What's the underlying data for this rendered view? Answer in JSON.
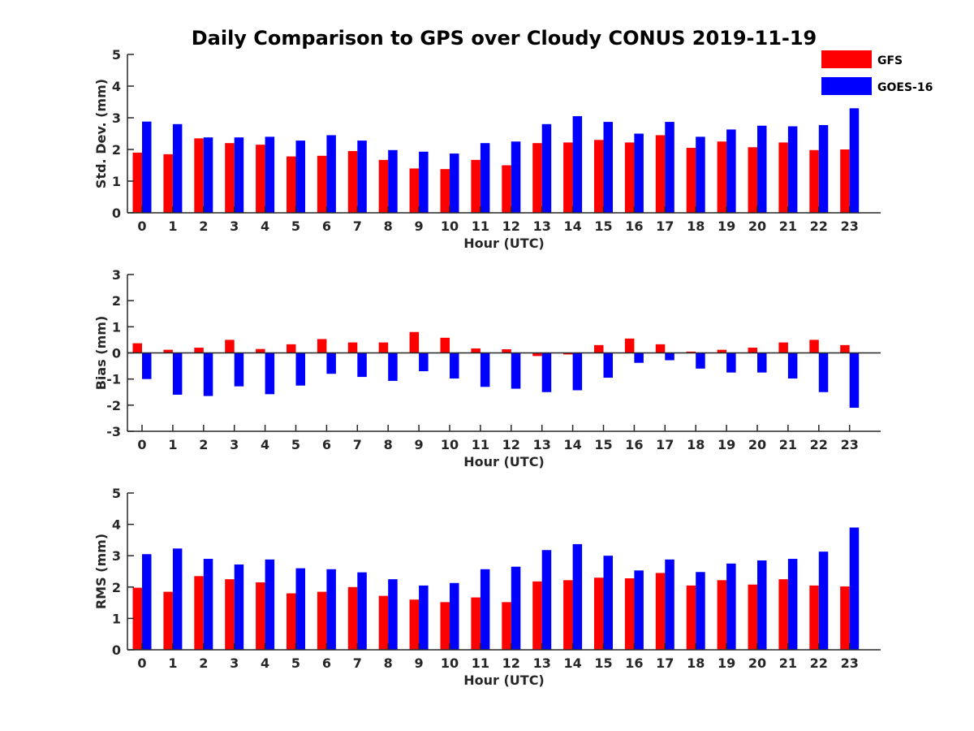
{
  "chart_data": [
    {
      "type": "bar",
      "title": "Daily Comparison to GPS over Cloudy CONUS 2019-11-19",
      "xlabel": "Hour (UTC)",
      "ylabel": "Std. Dev. (mm)",
      "ylim": [
        0,
        5
      ],
      "yticks": [
        "0",
        "1",
        "2",
        "3",
        "4",
        "5"
      ],
      "categories": [
        "0",
        "1",
        "2",
        "3",
        "4",
        "5",
        "6",
        "7",
        "8",
        "9",
        "10",
        "11",
        "12",
        "13",
        "14",
        "15",
        "16",
        "17",
        "18",
        "19",
        "20",
        "21",
        "22",
        "23"
      ],
      "series": [
        {
          "name": "GFS",
          "color": "#ff0000",
          "values": [
            1.9,
            1.85,
            2.35,
            2.2,
            2.15,
            1.78,
            1.8,
            1.95,
            1.67,
            1.4,
            1.38,
            1.67,
            1.5,
            2.2,
            2.22,
            2.3,
            2.22,
            2.45,
            2.05,
            2.25,
            2.07,
            2.22,
            1.98,
            2.0
          ]
        },
        {
          "name": "GOES-16",
          "color": "#0000ff",
          "values": [
            2.88,
            2.8,
            2.38,
            2.38,
            2.4,
            2.28,
            2.45,
            2.28,
            1.98,
            1.93,
            1.87,
            2.2,
            2.25,
            2.8,
            3.05,
            2.87,
            2.5,
            2.87,
            2.4,
            2.63,
            2.75,
            2.73,
            2.77,
            3.3
          ]
        }
      ],
      "legend": "top-right"
    },
    {
      "type": "bar",
      "xlabel": "Hour (UTC)",
      "ylabel": "Bias (mm)",
      "ylim": [
        -3,
        3
      ],
      "yticks": [
        "-3",
        "-2",
        "-1",
        "0",
        "1",
        "2",
        "3"
      ],
      "categories": [
        "0",
        "1",
        "2",
        "3",
        "4",
        "5",
        "6",
        "7",
        "8",
        "9",
        "10",
        "11",
        "12",
        "13",
        "14",
        "15",
        "16",
        "17",
        "18",
        "19",
        "20",
        "21",
        "22",
        "23"
      ],
      "series": [
        {
          "name": "GFS",
          "color": "#ff0000",
          "values": [
            0.37,
            0.12,
            0.2,
            0.5,
            0.15,
            0.33,
            0.53,
            0.4,
            0.4,
            0.8,
            0.58,
            0.17,
            0.14,
            -0.12,
            -0.06,
            0.3,
            0.55,
            0.33,
            0.05,
            0.12,
            0.2,
            0.4,
            0.5,
            0.3
          ]
        },
        {
          "name": "GOES-16",
          "color": "#0000ff",
          "values": [
            -1.0,
            -1.6,
            -1.65,
            -1.28,
            -1.58,
            -1.25,
            -0.8,
            -0.92,
            -1.07,
            -0.7,
            -0.98,
            -1.3,
            -1.37,
            -1.5,
            -1.43,
            -0.95,
            -0.38,
            -0.28,
            -0.6,
            -0.75,
            -0.75,
            -0.98,
            -1.5,
            -2.1
          ]
        }
      ]
    },
    {
      "type": "bar",
      "xlabel": "Hour (UTC)",
      "ylabel": "RMS (mm)",
      "ylim": [
        0,
        5
      ],
      "yticks": [
        "0",
        "1",
        "2",
        "3",
        "4",
        "5"
      ],
      "categories": [
        "0",
        "1",
        "2",
        "3",
        "4",
        "5",
        "6",
        "7",
        "8",
        "9",
        "10",
        "11",
        "12",
        "13",
        "14",
        "15",
        "16",
        "17",
        "18",
        "19",
        "20",
        "21",
        "22",
        "23"
      ],
      "series": [
        {
          "name": "GFS",
          "color": "#ff0000",
          "values": [
            1.98,
            1.85,
            2.35,
            2.25,
            2.15,
            1.8,
            1.85,
            2.0,
            1.72,
            1.6,
            1.52,
            1.67,
            1.52,
            2.18,
            2.22,
            2.3,
            2.28,
            2.45,
            2.05,
            2.22,
            2.08,
            2.25,
            2.05,
            2.02
          ]
        },
        {
          "name": "GOES-16",
          "color": "#0000ff",
          "values": [
            3.05,
            3.23,
            2.9,
            2.72,
            2.88,
            2.6,
            2.57,
            2.47,
            2.25,
            2.05,
            2.13,
            2.57,
            2.65,
            3.18,
            3.37,
            3.0,
            2.53,
            2.88,
            2.48,
            2.75,
            2.85,
            2.9,
            3.13,
            3.9
          ]
        }
      ]
    }
  ]
}
